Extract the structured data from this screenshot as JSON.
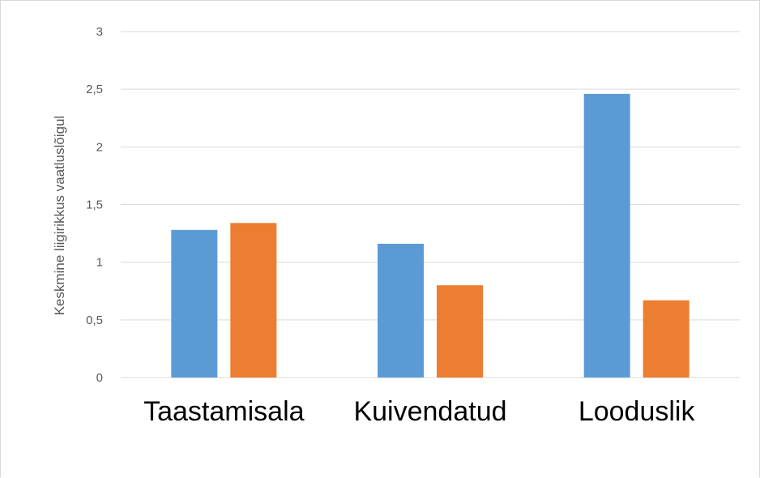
{
  "chart_data": {
    "type": "bar",
    "title": "",
    "xlabel": "",
    "ylabel": "Keskmine liigirikkus vaatluslõigul",
    "categories": [
      "Taastamisala",
      "Kuivendatud",
      "Looduslik"
    ],
    "series": [
      {
        "values": [
          1.28,
          1.16,
          2.46
        ],
        "color": "#5b9bd5"
      },
      {
        "values": [
          1.34,
          0.8,
          0.67
        ],
        "color": "#ed7d31"
      }
    ],
    "ylim": [
      0,
      3
    ],
    "yticks": [
      0,
      0.5,
      1,
      1.5,
      2,
      2.5,
      3
    ],
    "ytick_labels": [
      "0",
      "0,5",
      "1",
      "1,5",
      "2",
      "2,5",
      "3"
    ],
    "grid": true,
    "gridline_color": "#d9d9d9",
    "legend": "none"
  }
}
